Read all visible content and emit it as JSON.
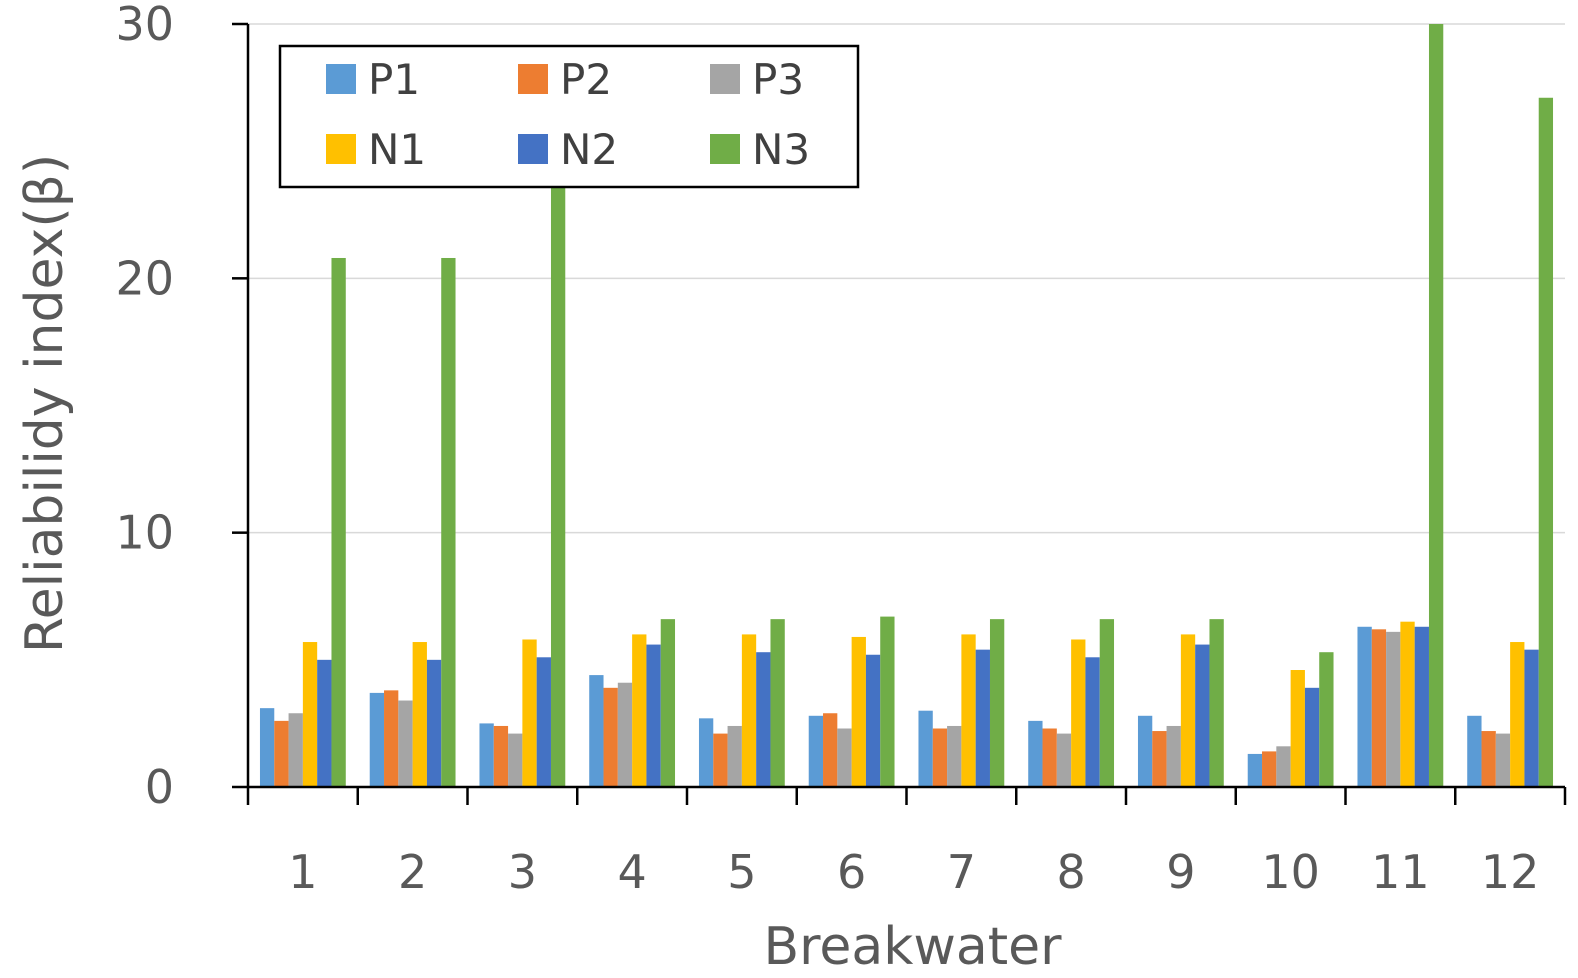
{
  "chart_data": {
    "type": "bar",
    "title": "",
    "xlabel": "Breakwater",
    "ylabel": "Reliabilidy index(β)",
    "ylim": [
      0,
      30
    ],
    "yticks": [
      "0",
      "10",
      "20",
      "30"
    ],
    "grid": "horizontal",
    "legend_position": "top-left",
    "categories": [
      "1",
      "2",
      "3",
      "4",
      "5",
      "6",
      "7",
      "8",
      "9",
      "10",
      "11",
      "12"
    ],
    "series": [
      {
        "name": "P1",
        "color": "#5B9BD5",
        "values": [
          3.1,
          3.7,
          2.5,
          4.4,
          2.7,
          2.8,
          3.0,
          2.6,
          2.8,
          1.3,
          6.3,
          2.8
        ]
      },
      {
        "name": "P2",
        "color": "#ED7D31",
        "values": [
          2.6,
          3.8,
          2.4,
          3.9,
          2.1,
          2.9,
          2.3,
          2.3,
          2.2,
          1.4,
          6.2,
          2.2
        ]
      },
      {
        "name": "P3",
        "color": "#A5A5A5",
        "values": [
          2.9,
          3.4,
          2.1,
          4.1,
          2.4,
          2.3,
          2.4,
          2.1,
          2.4,
          1.6,
          6.1,
          2.1
        ]
      },
      {
        "name": "N1",
        "color": "#FFC000",
        "values": [
          5.7,
          5.7,
          5.8,
          6.0,
          6.0,
          5.9,
          6.0,
          5.8,
          6.0,
          4.6,
          6.5,
          5.7
        ]
      },
      {
        "name": "N2",
        "color": "#4472C4",
        "values": [
          5.0,
          5.0,
          5.1,
          5.6,
          5.3,
          5.2,
          5.4,
          5.1,
          5.6,
          3.9,
          6.3,
          5.4
        ]
      },
      {
        "name": "N3",
        "color": "#70AD47",
        "values": [
          20.8,
          20.8,
          24.3,
          6.6,
          6.6,
          6.7,
          6.6,
          6.6,
          6.6,
          5.3,
          30.0,
          27.1
        ]
      }
    ]
  }
}
